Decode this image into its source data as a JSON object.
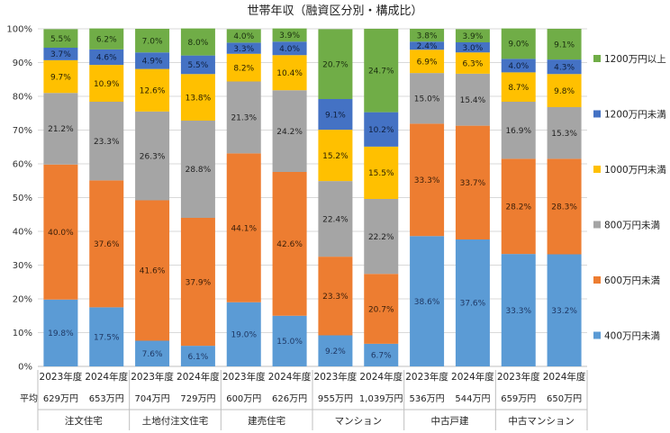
{
  "chart_data": {
    "type": "bar",
    "stacked": true,
    "normalized": true,
    "title": "世帯年収（融資区分別・構成比）",
    "y_ticks": [
      "0%",
      "10%",
      "20%",
      "30%",
      "40%",
      "50%",
      "60%",
      "70%",
      "80%",
      "90%",
      "100%"
    ],
    "ylim": [
      0,
      100
    ],
    "categories": [
      "2023年度",
      "2024年度",
      "2023年度",
      "2024年度",
      "2023年度",
      "2024年度",
      "2023年度",
      "2024年度",
      "2023年度",
      "2024年度",
      "2023年度",
      "2024年度"
    ],
    "avg_label": "平均",
    "averages": [
      "629万円",
      "653万円",
      "704万円",
      "729万円",
      "600万円",
      "626万円",
      "955万円",
      "1,039万円",
      "536万円",
      "544万円",
      "659万円",
      "650万円"
    ],
    "groups": [
      "注文住宅",
      "土地付注文住宅",
      "建売住宅",
      "マンション",
      "中古戸建",
      "中古マンション"
    ],
    "series": [
      {
        "name": "400万円未満",
        "color": "#5b9bd5",
        "label_color": "#1f3864",
        "values": [
          19.8,
          17.5,
          7.6,
          6.1,
          19.0,
          15.0,
          9.2,
          6.7,
          38.6,
          37.6,
          33.3,
          33.2
        ]
      },
      {
        "name": "600万円未満",
        "color": "#ed7d31",
        "label_color": "#3a1e08",
        "values": [
          40.0,
          37.6,
          41.6,
          37.9,
          44.1,
          42.6,
          23.3,
          20.7,
          33.3,
          33.7,
          28.2,
          28.3
        ]
      },
      {
        "name": "800万円未満",
        "color": "#a5a5a5",
        "label_color": "#1f1f1f",
        "values": [
          21.2,
          23.3,
          26.3,
          28.8,
          21.3,
          24.2,
          22.4,
          22.2,
          15.0,
          15.4,
          16.9,
          15.3
        ]
      },
      {
        "name": "1000万円未満",
        "color": "#ffc000",
        "label_color": "#2b2100",
        "values": [
          9.7,
          10.9,
          12.6,
          13.8,
          8.2,
          10.4,
          15.2,
          15.5,
          6.9,
          6.3,
          8.7,
          9.8
        ]
      },
      {
        "name": "1200万円未満",
        "color": "#4472c4",
        "label_color": "#0f1f3d",
        "values": [
          3.7,
          4.6,
          4.9,
          5.5,
          3.3,
          4.0,
          9.1,
          10.2,
          2.4,
          3.0,
          4.0,
          4.3
        ]
      },
      {
        "name": "1200万円以上",
        "color": "#70ad47",
        "label_color": "#1a2f0f",
        "values": [
          5.5,
          6.2,
          7.0,
          8.0,
          4.0,
          3.9,
          20.7,
          24.7,
          3.8,
          3.9,
          9.0,
          9.1
        ]
      }
    ],
    "value_suffix": "%"
  }
}
